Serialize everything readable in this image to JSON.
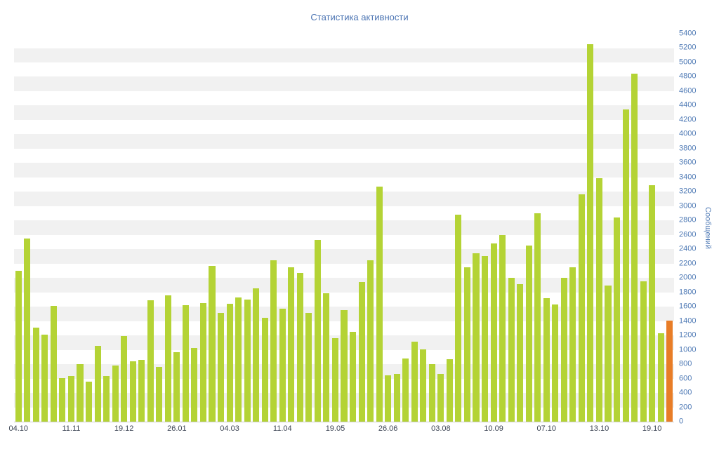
{
  "chart_data": {
    "type": "bar",
    "title": "Статистика активности",
    "ylabel": "Сообщений",
    "xlabel": "",
    "ylim": [
      0,
      5400
    ],
    "ytick_step": 200,
    "x_tick_step": 6,
    "x_tick_labels": [
      "04.10",
      "11.11",
      "19.12",
      "26.01",
      "04.03",
      "11.04",
      "19.05",
      "26.06",
      "03.08",
      "10.09",
      "07.10",
      "13.10",
      "19.10"
    ],
    "values": [
      2100,
      2550,
      1310,
      1210,
      1610,
      610,
      630,
      800,
      560,
      1050,
      630,
      780,
      1190,
      840,
      860,
      1690,
      760,
      1760,
      970,
      1620,
      1030,
      1650,
      2170,
      1510,
      1640,
      1730,
      1700,
      1860,
      1450,
      2250,
      1570,
      2150,
      2070,
      1510,
      2530,
      1790,
      1160,
      1550,
      1250,
      1940,
      2250,
      3270,
      640,
      660,
      880,
      1110,
      1010,
      800,
      660,
      870,
      2880,
      2150,
      2340,
      2300,
      2480,
      2600,
      2000,
      1910,
      2450,
      2900,
      1720,
      1630,
      2000,
      2150,
      3160,
      5250,
      3390,
      1890,
      2840,
      4350,
      4840,
      1950,
      3290,
      1230,
      1410
    ],
    "legend": "none",
    "grid": "alternating horizontal bands every 200 units",
    "colors": {
      "bar": "#b4d335",
      "highlight_last_bar": "#e87d27",
      "title": "#4a73b2",
      "y_axis_labels": "#4f7ab5",
      "x_axis_labels": "#3c4453",
      "stripe": "#f1f1f1",
      "axis_line": "#cccccc"
    }
  }
}
